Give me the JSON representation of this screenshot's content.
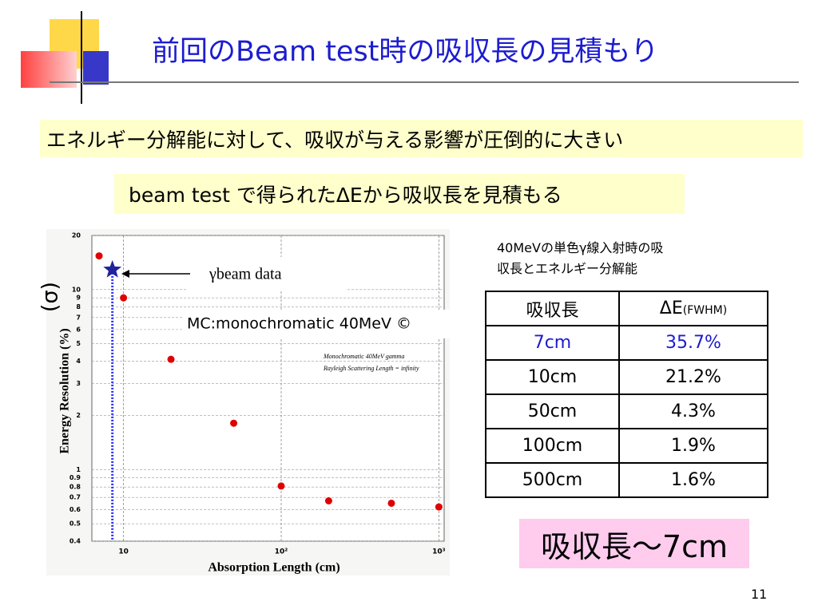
{
  "header": {
    "title": "前回のBeam test時の吸収長の見積もり"
  },
  "bullets": [
    "エネルギー分解能に対して、吸収が与える影響が圧倒的に大きい",
    "beam test で得られたΔEから吸収長を見積もる"
  ],
  "note": [
    "40MeVの単色γ線入射時の吸",
    "収長とエネルギー分解能"
  ],
  "table": {
    "header": [
      "吸収長",
      "ΔE",
      "(FWHM)"
    ],
    "rows": [
      [
        "7cm",
        "35.7%"
      ],
      [
        "10cm",
        "21.2%"
      ],
      [
        "50cm",
        "4.3%"
      ],
      [
        "100cm",
        "1.9%"
      ],
      [
        "500cm",
        "1.6%"
      ]
    ]
  },
  "conclusion": "吸収長～7cm",
  "page_number": "11",
  "chart_data": {
    "type": "scatter",
    "xlabel": "Absorption Length (cm)",
    "ylabel": "Energy Resolution (%)",
    "annotations": [
      "(σ)",
      "Monochromatic 40MeV gamma",
      "Rayleigh Scattering Length = infinity"
    ],
    "xscale": "log",
    "yscale": "log",
    "xlim": [
      6.3,
      1080
    ],
    "ylim": [
      0.4,
      20
    ],
    "xticks": [
      10,
      {
        "value": 100,
        "label": "10²"
      },
      {
        "value": 1000,
        "label": "10³"
      }
    ],
    "yticks": [
      20,
      10,
      9,
      8,
      7,
      6,
      5,
      4,
      3,
      2,
      1,
      0.9,
      0.8,
      0.7,
      0.6,
      0.5,
      0.4
    ],
    "grid": true,
    "series": [
      {
        "name": "MC:monochromatic 40MeV ©",
        "color": "#e00000",
        "marker": "circle",
        "x": [
          7,
          10,
          20,
          50,
          100,
          200,
          500,
          1000
        ],
        "values": [
          15.4,
          9.0,
          4.1,
          1.81,
          0.81,
          0.67,
          0.65,
          0.62
        ]
      },
      {
        "name": "γbeam data",
        "color": "#22229a",
        "marker": "star",
        "x": [
          8.5
        ],
        "values": [
          12.9
        ]
      }
    ]
  }
}
